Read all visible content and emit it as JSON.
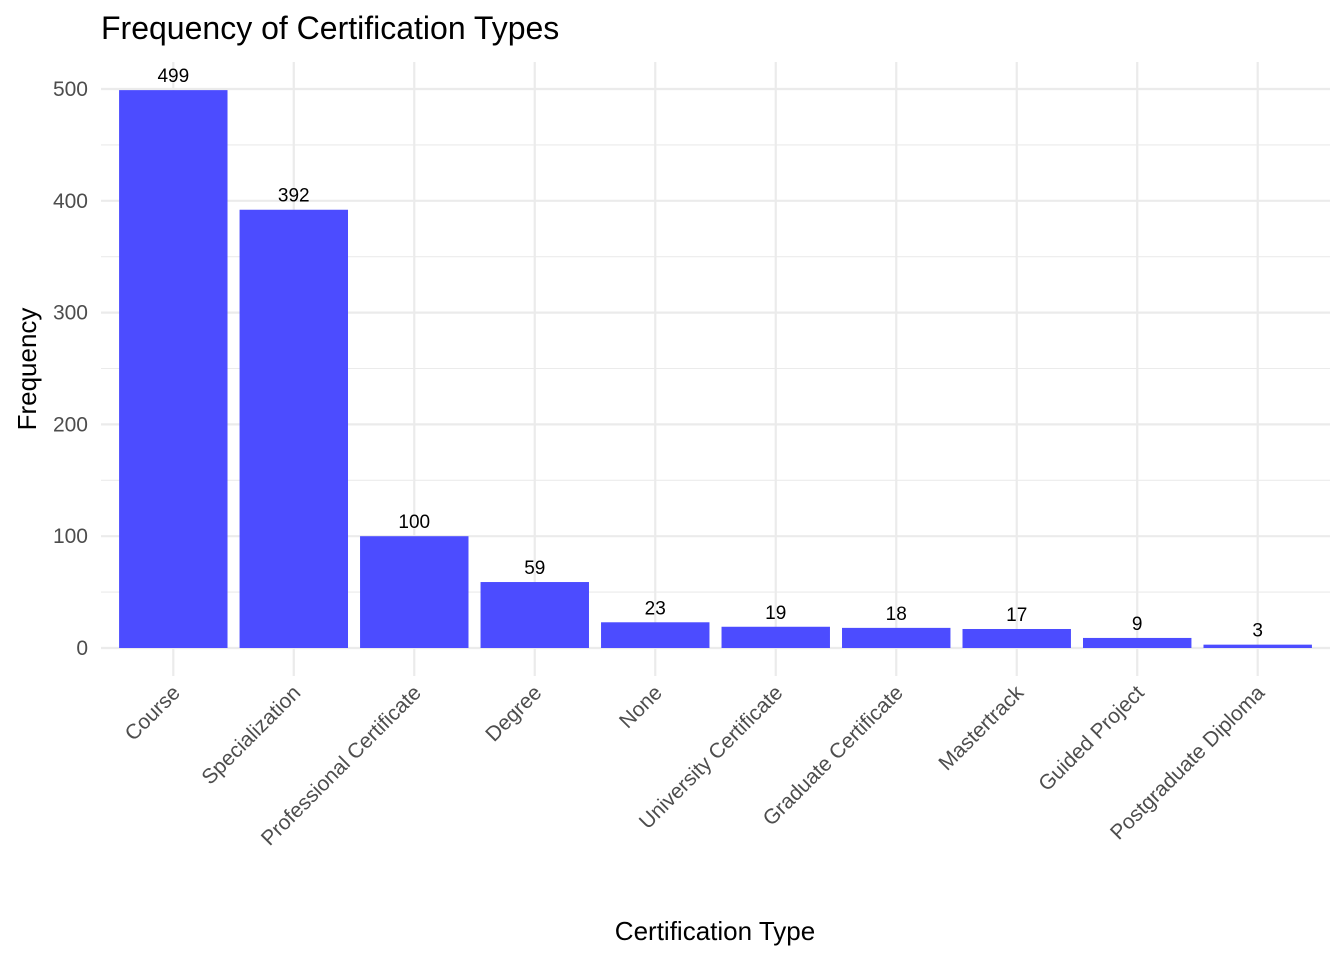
{
  "chart_data": {
    "type": "bar",
    "title": "Frequency of Certification Types",
    "xlabel": "Certification Type",
    "ylabel": "Frequency",
    "categories": [
      "Course",
      "Specialization",
      "Professional Certificate",
      "Degree",
      "None",
      "University Certificate",
      "Graduate Certificate",
      "Mastertrack",
      "Guided Project",
      "Postgraduate Diploma"
    ],
    "values": [
      499,
      392,
      100,
      59,
      23,
      19,
      18,
      17,
      9,
      3
    ],
    "ylim": [
      0,
      525
    ],
    "yticks": [
      0,
      100,
      200,
      300,
      400,
      500
    ],
    "grid": true,
    "bar_color": "#4c4cff",
    "legend": "none"
  }
}
